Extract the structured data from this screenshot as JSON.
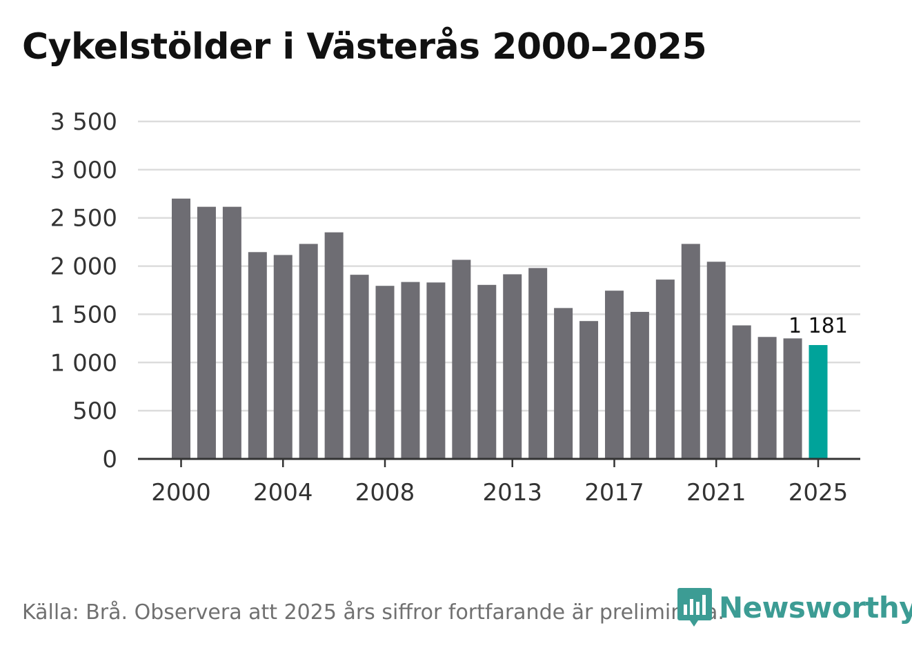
{
  "title": "Cykelstölder i Västerås 2000–2025",
  "source": "Källa: Brå. Observera att 2025 års siffror fortfarande är preliminära.",
  "brand": "Newsworthy",
  "colors": {
    "bar": "#6e6d73",
    "highlight": "#00a39a",
    "grid": "#dcdcdc",
    "axis": "#333333",
    "brand": "#3c9c94"
  },
  "chart_data": {
    "type": "bar",
    "title": "Cykelstölder i Västerås 2000–2025",
    "xlabel": "",
    "ylabel": "",
    "ylim": [
      0,
      3500
    ],
    "yticks": [
      0,
      500,
      1000,
      1500,
      2000,
      2500,
      3000,
      3500
    ],
    "ytick_labels": [
      "0",
      "500",
      "1 000",
      "1 500",
      "2 000",
      "2 500",
      "3 000",
      "3 500"
    ],
    "xtick_labels": [
      "2000",
      "2004",
      "2008",
      "2013",
      "2017",
      "2021",
      "2025"
    ],
    "categories": [
      "2000",
      "2001",
      "2002",
      "2003",
      "2004",
      "2005",
      "2006",
      "2007",
      "2008",
      "2009",
      "2010",
      "2011",
      "2012",
      "2013",
      "2014",
      "2015",
      "2016",
      "2017",
      "2018",
      "2019",
      "2020",
      "2021",
      "2022",
      "2023",
      "2024",
      "2025"
    ],
    "values": [
      2700,
      2615,
      2615,
      2145,
      2115,
      2230,
      2350,
      1910,
      1795,
      1835,
      1830,
      2065,
      1805,
      1915,
      1980,
      1565,
      1430,
      1745,
      1525,
      1860,
      2230,
      2045,
      1385,
      1265,
      1250,
      1181
    ],
    "highlight_index": 25,
    "annotations": [
      {
        "category": "2025",
        "text": "1 181"
      }
    ],
    "grid": true,
    "legend": "none"
  }
}
